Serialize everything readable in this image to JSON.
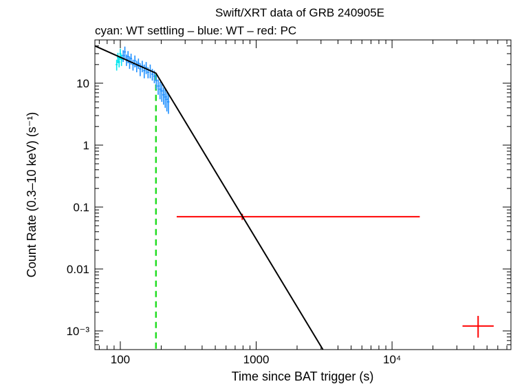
{
  "chart_data": {
    "type": "scatter",
    "title": "Swift/XRT data of GRB 240905E",
    "subtitle": "cyan: WT settling – blue: WT – red: PC",
    "xlabel": "Time since BAT trigger (s)",
    "ylabel": "Count Rate (0.3–10 keV) (s⁻¹)",
    "xscale": "log",
    "yscale": "log",
    "xlim": [
      65,
      75000
    ],
    "ylim": [
      0.0005,
      50
    ],
    "x_ticks": [
      {
        "value": 100,
        "label": "100"
      },
      {
        "value": 1000,
        "label": "1000"
      },
      {
        "value": 10000,
        "label": "10⁴"
      }
    ],
    "y_ticks": [
      {
        "value": 0.001,
        "label": "10⁻³"
      },
      {
        "value": 0.01,
        "label": "0.01"
      },
      {
        "value": 0.1,
        "label": "0.1"
      },
      {
        "value": 1,
        "label": "1"
      },
      {
        "value": 10,
        "label": "10"
      }
    ],
    "grid": false,
    "colors": {
      "wt_settling": "#00e5ee",
      "wt": "#1e8fff",
      "pc": "#ff0000",
      "model": "#000000",
      "marker_line": "#22dd22"
    },
    "series": [
      {
        "name": "WT settling",
        "color": "#00e5ee",
        "points": [
          {
            "x": 94,
            "y": 20,
            "yerr": 4
          },
          {
            "x": 96,
            "y": 26,
            "yerr": 5
          },
          {
            "x": 98,
            "y": 22,
            "yerr": 4
          },
          {
            "x": 100,
            "y": 30,
            "yerr": 6
          },
          {
            "x": 102,
            "y": 24,
            "yerr": 5
          }
        ]
      },
      {
        "name": "WT",
        "color": "#1e8fff",
        "points": [
          {
            "x": 105,
            "y": 28,
            "yerr": 6
          },
          {
            "x": 108,
            "y": 32,
            "yerr": 7
          },
          {
            "x": 111,
            "y": 24,
            "yerr": 5
          },
          {
            "x": 114,
            "y": 27,
            "yerr": 6
          },
          {
            "x": 117,
            "y": 22,
            "yerr": 5
          },
          {
            "x": 120,
            "y": 25,
            "yerr": 5
          },
          {
            "x": 124,
            "y": 20,
            "yerr": 4
          },
          {
            "x": 128,
            "y": 23,
            "yerr": 5
          },
          {
            "x": 132,
            "y": 19,
            "yerr": 4
          },
          {
            "x": 136,
            "y": 21,
            "yerr": 4
          },
          {
            "x": 140,
            "y": 17,
            "yerr": 4
          },
          {
            "x": 145,
            "y": 19,
            "yerr": 4
          },
          {
            "x": 150,
            "y": 16,
            "yerr": 4
          },
          {
            "x": 155,
            "y": 18,
            "yerr": 4
          },
          {
            "x": 160,
            "y": 15,
            "yerr": 3
          },
          {
            "x": 166,
            "y": 16,
            "yerr": 4
          },
          {
            "x": 172,
            "y": 14,
            "yerr": 3
          },
          {
            "x": 178,
            "y": 13,
            "yerr": 3
          },
          {
            "x": 184,
            "y": 11,
            "yerr": 3
          },
          {
            "x": 190,
            "y": 9,
            "yerr": 2.5
          },
          {
            "x": 196,
            "y": 8,
            "yerr": 2.5
          },
          {
            "x": 202,
            "y": 7.5,
            "yerr": 2.5
          },
          {
            "x": 208,
            "y": 6.5,
            "yerr": 2
          },
          {
            "x": 214,
            "y": 6,
            "yerr": 2
          },
          {
            "x": 220,
            "y": 5.5,
            "yerr": 2
          },
          {
            "x": 226,
            "y": 5,
            "yerr": 1.8
          }
        ]
      },
      {
        "name": "PC",
        "color": "#ff0000",
        "points": [
          {
            "x": 790,
            "y": 0.07,
            "xerr_low": 260,
            "xerr_high": 16000,
            "yerr_low": 0.062,
            "yerr_high": 0.078
          }
        ]
      }
    ],
    "model": {
      "name": "broken power law",
      "color": "#000000",
      "points": [
        {
          "x": 65,
          "y": 40
        },
        {
          "x": 183,
          "y": 14.5
        },
        {
          "x": 3100,
          "y": 0.0005
        }
      ]
    },
    "vertical_marker": {
      "x": 183,
      "color": "#22dd22",
      "style": "dashed"
    },
    "sample_cross": {
      "x": 43000,
      "y": 0.0012,
      "xerr_low": 33000,
      "xerr_high": 56000,
      "yerr_low": 0.00078,
      "yerr_high": 0.00175,
      "color": "#ff0000"
    }
  }
}
